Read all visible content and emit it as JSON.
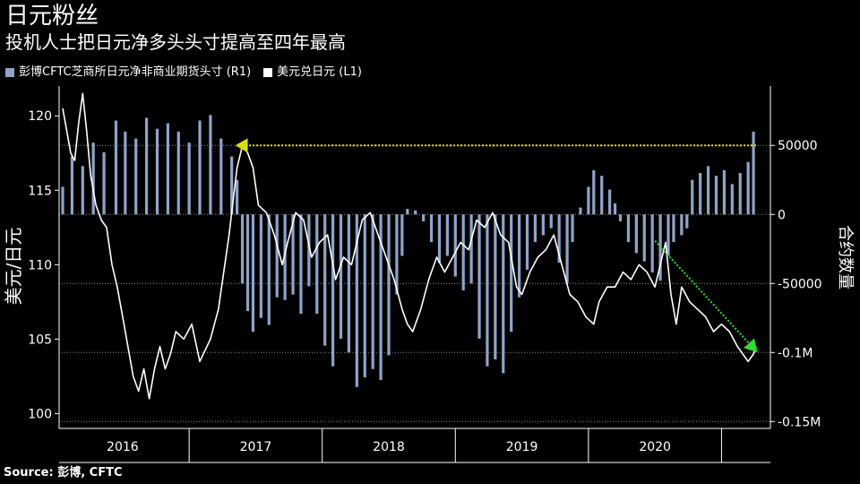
{
  "title": "日元粉丝",
  "subtitle": "投机人士把日元净多头头寸提高至四年最高",
  "source": "Source: 彭博, CFTC",
  "colors": {
    "bars": "#8FA4C8",
    "line": "#FFFFFF",
    "arrow_yellow": "#D8E000",
    "arrow_green": "#2EE02E",
    "grid": "#888888",
    "axis": "#FFFFFF"
  },
  "chart_data": {
    "type": "bar+line",
    "x_range": [
      2015.55,
      2020.8
    ],
    "x_ticks": [
      {
        "label": "2016",
        "at": 2016.0
      },
      {
        "label": "2017",
        "at": 2017.0
      },
      {
        "label": "2018",
        "at": 2018.0
      },
      {
        "label": "2019",
        "at": 2019.0
      },
      {
        "label": "2020",
        "at": 2020.0
      }
    ],
    "year_boundaries": [
      2016.5,
      2017.5,
      2018.5,
      2019.5,
      2020.5
    ],
    "left_axis": {
      "label": "美元/日元",
      "ylim": [
        99,
        122
      ],
      "ticks": [
        100,
        105,
        110,
        115,
        120
      ]
    },
    "right_axis": {
      "label": "合约数量",
      "ylim": [
        -155000,
        93000
      ],
      "ticks": [
        50000,
        0,
        -50000,
        -100000,
        -150000
      ],
      "tick_labels": [
        "50000",
        "0",
        "-50000",
        "-0.1M",
        "-0.15M"
      ]
    },
    "series": [
      {
        "name": "彭博CFTC芝商所日元净非商业期货头寸 (R1)",
        "kind": "bar",
        "axis": "right",
        "points": [
          [
            2015.55,
            20000
          ],
          [
            2015.62,
            42000
          ],
          [
            2015.7,
            35000
          ],
          [
            2015.78,
            52000
          ],
          [
            2015.86,
            45000
          ],
          [
            2015.95,
            68000
          ],
          [
            2016.02,
            60000
          ],
          [
            2016.1,
            55000
          ],
          [
            2016.18,
            70000
          ],
          [
            2016.26,
            62000
          ],
          [
            2016.34,
            66000
          ],
          [
            2016.42,
            60000
          ],
          [
            2016.5,
            52000
          ],
          [
            2016.58,
            68000
          ],
          [
            2016.66,
            72000
          ],
          [
            2016.74,
            55000
          ],
          [
            2016.82,
            42000
          ],
          [
            2016.86,
            25000
          ],
          [
            2016.88,
            0
          ],
          [
            2016.9,
            -50000
          ],
          [
            2016.94,
            -70000
          ],
          [
            2016.98,
            -85000
          ],
          [
            2017.04,
            -75000
          ],
          [
            2017.1,
            -80000
          ],
          [
            2017.16,
            -60000
          ],
          [
            2017.22,
            -62000
          ],
          [
            2017.28,
            -58000
          ],
          [
            2017.34,
            -72000
          ],
          [
            2017.4,
            -52000
          ],
          [
            2017.46,
            -72000
          ],
          [
            2017.52,
            -95000
          ],
          [
            2017.58,
            -110000
          ],
          [
            2017.64,
            -90000
          ],
          [
            2017.7,
            -100000
          ],
          [
            2017.76,
            -125000
          ],
          [
            2017.82,
            -118000
          ],
          [
            2017.88,
            -112000
          ],
          [
            2017.94,
            -120000
          ],
          [
            2018.0,
            -102000
          ],
          [
            2018.06,
            -58000
          ],
          [
            2018.1,
            -30000
          ],
          [
            2018.14,
            4000
          ],
          [
            2018.2,
            3000
          ],
          [
            2018.26,
            -5000
          ],
          [
            2018.32,
            -20000
          ],
          [
            2018.38,
            -35000
          ],
          [
            2018.44,
            -30000
          ],
          [
            2018.5,
            -45000
          ],
          [
            2018.56,
            -55000
          ],
          [
            2018.62,
            -50000
          ],
          [
            2018.68,
            -90000
          ],
          [
            2018.74,
            -110000
          ],
          [
            2018.8,
            -105000
          ],
          [
            2018.86,
            -115000
          ],
          [
            2018.92,
            -85000
          ],
          [
            2018.98,
            -60000
          ],
          [
            2019.04,
            -40000
          ],
          [
            2019.1,
            -20000
          ],
          [
            2019.16,
            -15000
          ],
          [
            2019.22,
            -10000
          ],
          [
            2019.28,
            -35000
          ],
          [
            2019.34,
            -50000
          ],
          [
            2019.38,
            -20000
          ],
          [
            2019.44,
            5000
          ],
          [
            2019.5,
            20000
          ],
          [
            2019.54,
            32000
          ],
          [
            2019.6,
            28000
          ],
          [
            2019.66,
            18000
          ],
          [
            2019.7,
            8000
          ],
          [
            2019.74,
            -5000
          ],
          [
            2019.8,
            -20000
          ],
          [
            2019.86,
            -28000
          ],
          [
            2019.92,
            -34000
          ],
          [
            2019.98,
            -42000
          ],
          [
            2020.04,
            -48000
          ],
          [
            2020.1,
            -30000
          ],
          [
            2020.14,
            -20000
          ],
          [
            2020.2,
            -15000
          ],
          [
            2020.24,
            -10000
          ],
          [
            2020.28,
            25000
          ],
          [
            2020.34,
            30000
          ],
          [
            2020.4,
            35000
          ],
          [
            2020.46,
            28000
          ],
          [
            2020.52,
            32000
          ],
          [
            2020.58,
            22000
          ],
          [
            2020.64,
            30000
          ],
          [
            2020.7,
            38000
          ],
          [
            2020.74,
            60000
          ]
        ]
      },
      {
        "name": "美元兑日元 (L1)",
        "kind": "line",
        "axis": "left",
        "points": [
          [
            2015.55,
            120.5
          ],
          [
            2015.58,
            119.0
          ],
          [
            2015.61,
            117.5
          ],
          [
            2015.64,
            117.0
          ],
          [
            2015.67,
            119.5
          ],
          [
            2015.7,
            121.5
          ],
          [
            2015.73,
            119.0
          ],
          [
            2015.76,
            116.0
          ],
          [
            2015.8,
            114.0
          ],
          [
            2015.84,
            113.0
          ],
          [
            2015.88,
            112.5
          ],
          [
            2015.92,
            110.0
          ],
          [
            2015.96,
            108.5
          ],
          [
            2016.0,
            106.5
          ],
          [
            2016.04,
            104.5
          ],
          [
            2016.08,
            102.5
          ],
          [
            2016.12,
            101.5
          ],
          [
            2016.16,
            103.0
          ],
          [
            2016.2,
            101.0
          ],
          [
            2016.24,
            103.0
          ],
          [
            2016.28,
            104.5
          ],
          [
            2016.32,
            103.0
          ],
          [
            2016.36,
            104.0
          ],
          [
            2016.4,
            105.5
          ],
          [
            2016.46,
            105.0
          ],
          [
            2016.52,
            106.0
          ],
          [
            2016.58,
            103.5
          ],
          [
            2016.66,
            105.0
          ],
          [
            2016.72,
            107.0
          ],
          [
            2016.8,
            112.0
          ],
          [
            2016.86,
            116.5
          ],
          [
            2016.9,
            118.0
          ],
          [
            2016.94,
            117.5
          ],
          [
            2016.98,
            116.5
          ],
          [
            2017.02,
            114.0
          ],
          [
            2017.08,
            113.5
          ],
          [
            2017.14,
            112.0
          ],
          [
            2017.2,
            110.0
          ],
          [
            2017.24,
            111.5
          ],
          [
            2017.3,
            113.5
          ],
          [
            2017.36,
            113.0
          ],
          [
            2017.42,
            110.5
          ],
          [
            2017.48,
            111.5
          ],
          [
            2017.54,
            112.0
          ],
          [
            2017.6,
            109.0
          ],
          [
            2017.66,
            110.5
          ],
          [
            2017.72,
            110.0
          ],
          [
            2017.8,
            113.0
          ],
          [
            2017.86,
            113.5
          ],
          [
            2017.92,
            112.0
          ],
          [
            2017.98,
            110.5
          ],
          [
            2018.04,
            109.0
          ],
          [
            2018.1,
            107.0
          ],
          [
            2018.14,
            106.0
          ],
          [
            2018.18,
            105.5
          ],
          [
            2018.24,
            107.0
          ],
          [
            2018.3,
            109.0
          ],
          [
            2018.36,
            110.5
          ],
          [
            2018.42,
            109.5
          ],
          [
            2018.48,
            110.5
          ],
          [
            2018.54,
            111.5
          ],
          [
            2018.6,
            111.0
          ],
          [
            2018.66,
            113.0
          ],
          [
            2018.72,
            112.5
          ],
          [
            2018.78,
            113.5
          ],
          [
            2018.84,
            112.0
          ],
          [
            2018.9,
            111.5
          ],
          [
            2018.96,
            108.5
          ],
          [
            2019.0,
            108.0
          ],
          [
            2019.06,
            109.5
          ],
          [
            2019.12,
            110.5
          ],
          [
            2019.18,
            111.0
          ],
          [
            2019.24,
            112.0
          ],
          [
            2019.3,
            110.0
          ],
          [
            2019.36,
            108.0
          ],
          [
            2019.42,
            107.5
          ],
          [
            2019.48,
            106.5
          ],
          [
            2019.54,
            106.0
          ],
          [
            2019.58,
            107.5
          ],
          [
            2019.64,
            108.5
          ],
          [
            2019.7,
            108.5
          ],
          [
            2019.76,
            109.5
          ],
          [
            2019.82,
            109.0
          ],
          [
            2019.88,
            110.0
          ],
          [
            2019.94,
            109.5
          ],
          [
            2020.0,
            108.5
          ],
          [
            2020.04,
            110.0
          ],
          [
            2020.08,
            111.5
          ],
          [
            2020.12,
            108.0
          ],
          [
            2020.16,
            106.0
          ],
          [
            2020.2,
            108.5
          ],
          [
            2020.26,
            107.5
          ],
          [
            2020.32,
            107.0
          ],
          [
            2020.38,
            106.5
          ],
          [
            2020.44,
            105.5
          ],
          [
            2020.5,
            106.0
          ],
          [
            2020.56,
            105.5
          ],
          [
            2020.62,
            104.5
          ],
          [
            2020.66,
            104.0
          ],
          [
            2020.7,
            103.5
          ],
          [
            2020.74,
            104.0
          ],
          [
            2020.76,
            104.5
          ]
        ]
      }
    ],
    "annotations": [
      {
        "kind": "arrow",
        "color": "yellow",
        "from": [
          2020.76,
          50000
        ],
        "to": [
          2016.86,
          50000
        ],
        "axis": "right"
      },
      {
        "kind": "arrow",
        "color": "green",
        "from": [
          2020.0,
          111.6
        ],
        "to": [
          2020.76,
          104.2
        ],
        "axis": "left"
      }
    ]
  }
}
